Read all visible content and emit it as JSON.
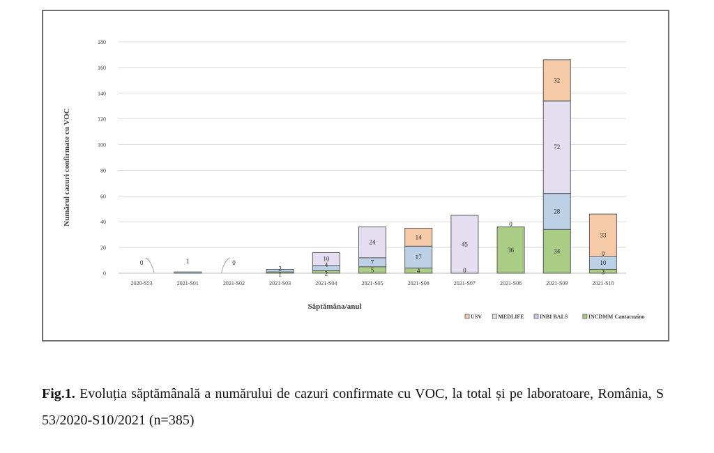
{
  "caption": {
    "label": "Fig.1.",
    "text": "Evoluția săptămânală a numărului de cazuri confirmate cu VOC, la total și pe laboratoare, România, S 53/2020-S10/2021 (n=385)"
  },
  "colors": {
    "USV": "#f8cba8",
    "MEDLIFE": "#e4def0",
    "INBI BALS": "#bcd0e6",
    "INCDMM Cantacuzino": "#aacd86",
    "grid": "#d9d9d9",
    "bar_edge": "#595959"
  },
  "chart_data": {
    "type": "bar",
    "stacked": true,
    "title": "",
    "xlabel": "Săptămâna/anul",
    "ylabel": "Numărul cazuri confirmate cu VOC",
    "ylim": [
      0,
      180
    ],
    "yticks": [
      0,
      20,
      40,
      60,
      80,
      100,
      120,
      140,
      160,
      180
    ],
    "grid": true,
    "legend_position": "bottom-right",
    "categories": [
      "2020-S53",
      "2021-S01",
      "2021-S02",
      "2021-S03",
      "2021-S04",
      "2021-S05",
      "2021-S06",
      "2021-S07",
      "2021-S08",
      "2021-S09",
      "2021-S10"
    ],
    "series": [
      {
        "name": "INCDMM Cantacuzino",
        "values": [
          0,
          0,
          0,
          1,
          2,
          5,
          4,
          0,
          36,
          34,
          3
        ]
      },
      {
        "name": "INBI BALS",
        "values": [
          0,
          1,
          0,
          2,
          4,
          7,
          17,
          0,
          0,
          28,
          10
        ]
      },
      {
        "name": "MEDLIFE",
        "values": [
          0,
          0,
          0,
          0,
          10,
          24,
          0,
          45,
          0,
          72,
          0
        ]
      },
      {
        "name": "USV",
        "values": [
          0,
          0,
          0,
          0,
          0,
          0,
          14,
          0,
          0,
          32,
          33
        ]
      }
    ],
    "legend_order": [
      "USV",
      "MEDLIFE",
      "INBI BALS",
      "INCDMM Cantacuzino"
    ],
    "data_labels": [
      {
        "category": "2020-S53",
        "value": "0"
      },
      {
        "category": "2021-S01",
        "value": "1"
      },
      {
        "category": "2021-S02",
        "value": "0"
      },
      {
        "category": "2021-S03",
        "series": "INCDMM Cantacuzino",
        "value": "1"
      },
      {
        "category": "2021-S03",
        "series": "INBI BALS",
        "value": "2"
      },
      {
        "category": "2021-S04",
        "series": "INCDMM Cantacuzino",
        "value": "2"
      },
      {
        "category": "2021-S04",
        "series": "INBI BALS",
        "value": "4"
      },
      {
        "category": "2021-S04",
        "series": "MEDLIFE",
        "value": "10"
      },
      {
        "category": "2021-S05",
        "series": "INCDMM Cantacuzino",
        "value": "5"
      },
      {
        "category": "2021-S05",
        "series": "INBI BALS",
        "value": "7"
      },
      {
        "category": "2021-S05",
        "series": "MEDLIFE",
        "value": "24"
      },
      {
        "category": "2021-S06",
        "series": "INCDMM Cantacuzino",
        "value": "4"
      },
      {
        "category": "2021-S06",
        "series": "INBI BALS",
        "value": "17"
      },
      {
        "category": "2021-S06",
        "series": "USV",
        "value": "14"
      },
      {
        "category": "2021-S07",
        "series": "INCDMM Cantacuzino",
        "value": "0"
      },
      {
        "category": "2021-S07",
        "series": "MEDLIFE",
        "value": "45"
      },
      {
        "category": "2021-S08",
        "series": "INCDMM Cantacuzino",
        "value": "36"
      },
      {
        "category": "2021-S08",
        "series": "INBI BALS",
        "value": "0"
      },
      {
        "category": "2021-S09",
        "series": "INCDMM Cantacuzino",
        "value": "34"
      },
      {
        "category": "2021-S09",
        "series": "INBI BALS",
        "value": "28"
      },
      {
        "category": "2021-S09",
        "series": "MEDLIFE",
        "value": "72"
      },
      {
        "category": "2021-S09",
        "series": "USV",
        "value": "32"
      },
      {
        "category": "2021-S10",
        "series": "INCDMM Cantacuzino",
        "value": "3"
      },
      {
        "category": "2021-S10",
        "series": "INBI BALS",
        "value": "10"
      },
      {
        "category": "2021-S10",
        "series": "MEDLIFE",
        "value": "0"
      },
      {
        "category": "2021-S10",
        "series": "USV",
        "value": "33"
      }
    ]
  }
}
